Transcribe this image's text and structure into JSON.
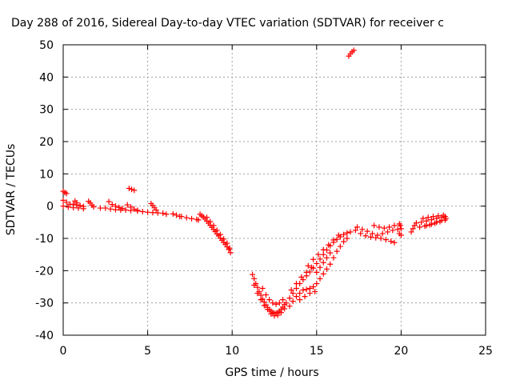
{
  "chart_data": {
    "type": "scatter",
    "title": "Day 288 of 2016, Sidereal Day-to-day VTEC variation (SDTVAR) for receiver c",
    "xlabel": "GPS time / hours",
    "ylabel": "SDTVAR / TECUs",
    "xlim": [
      0,
      25
    ],
    "ylim": [
      -40,
      50
    ],
    "xticks": [
      0,
      5,
      10,
      15,
      20,
      25
    ],
    "yticks": [
      -40,
      -30,
      -20,
      -10,
      0,
      10,
      20,
      30,
      40,
      50
    ],
    "grid": true,
    "marker": "plus",
    "color": "#ff0000",
    "series": [
      {
        "name": "SDTVAR",
        "points": [
          [
            0.0,
            4.6
          ],
          [
            0.1,
            4.2
          ],
          [
            0.2,
            3.9
          ],
          [
            0.0,
            1.8
          ],
          [
            0.2,
            1.2
          ],
          [
            0.4,
            0.6
          ],
          [
            0.6,
            0.5
          ],
          [
            0.8,
            0.4
          ],
          [
            1.0,
            0.2
          ],
          [
            1.2,
            -0.1
          ],
          [
            0.0,
            0.0
          ],
          [
            0.3,
            -0.3
          ],
          [
            0.6,
            -0.5
          ],
          [
            0.9,
            -0.6
          ],
          [
            1.2,
            -0.8
          ],
          [
            0.7,
            1.6
          ],
          [
            0.8,
            1.0
          ],
          [
            1.5,
            1.5
          ],
          [
            1.6,
            1.0
          ],
          [
            1.7,
            0.3
          ],
          [
            1.8,
            -0.2
          ],
          [
            2.2,
            -0.6
          ],
          [
            2.5,
            -0.6
          ],
          [
            2.8,
            -0.9
          ],
          [
            3.1,
            -1.1
          ],
          [
            3.4,
            -1.2
          ],
          [
            3.7,
            -1.2
          ],
          [
            4.0,
            -1.4
          ],
          [
            2.7,
            1.4
          ],
          [
            2.9,
            0.5
          ],
          [
            3.1,
            0.0
          ],
          [
            3.3,
            -0.4
          ],
          [
            3.5,
            -0.7
          ],
          [
            3.8,
            0.4
          ],
          [
            4.0,
            -0.3
          ],
          [
            4.2,
            -0.9
          ],
          [
            4.4,
            -1.3
          ],
          [
            3.9,
            5.5
          ],
          [
            4.05,
            5.2
          ],
          [
            4.2,
            4.9
          ],
          [
            4.4,
            -1.5
          ],
          [
            4.7,
            -1.7
          ],
          [
            5.0,
            -1.9
          ],
          [
            5.3,
            -2.0
          ],
          [
            5.6,
            -2.1
          ],
          [
            5.9,
            -2.2
          ],
          [
            5.2,
            0.8
          ],
          [
            5.3,
            0.2
          ],
          [
            5.4,
            -0.5
          ],
          [
            5.5,
            -1.2
          ],
          [
            6.1,
            -2.5
          ],
          [
            6.5,
            -2.4
          ],
          [
            6.7,
            -2.8
          ],
          [
            6.9,
            -3.2
          ],
          [
            7.0,
            -3.2
          ],
          [
            7.3,
            -3.6
          ],
          [
            7.6,
            -3.9
          ],
          [
            7.9,
            -4.1
          ],
          [
            8.0,
            -4.3
          ],
          [
            8.1,
            -2.5
          ],
          [
            8.2,
            -3.0
          ],
          [
            8.3,
            -3.4
          ],
          [
            8.4,
            -4.0
          ],
          [
            8.5,
            -4.6
          ],
          [
            8.6,
            -5.3
          ],
          [
            8.7,
            -5.9
          ],
          [
            8.8,
            -6.6
          ],
          [
            8.9,
            -7.2
          ],
          [
            9.0,
            -7.9
          ],
          [
            9.1,
            -8.6
          ],
          [
            9.2,
            -9.2
          ],
          [
            9.3,
            -9.9
          ],
          [
            9.4,
            -10.6
          ],
          [
            9.5,
            -11.2
          ],
          [
            9.6,
            -11.9
          ],
          [
            9.7,
            -12.6
          ],
          [
            9.8,
            -13.4
          ],
          [
            9.9,
            -14.4
          ],
          [
            8.5,
            -3.5
          ],
          [
            8.7,
            -4.8
          ],
          [
            8.9,
            -6.0
          ],
          [
            9.1,
            -7.5
          ],
          [
            9.3,
            -8.8
          ],
          [
            9.5,
            -10.2
          ],
          [
            9.7,
            -11.5
          ],
          [
            9.85,
            -13.0
          ],
          [
            11.2,
            -21.2
          ],
          [
            11.3,
            -22.5
          ],
          [
            11.4,
            -24.0
          ],
          [
            11.5,
            -25.2
          ],
          [
            11.6,
            -26.5
          ],
          [
            11.7,
            -27.6
          ],
          [
            11.8,
            -28.8
          ],
          [
            11.9,
            -29.7
          ],
          [
            12.0,
            -30.6
          ],
          [
            12.1,
            -31.4
          ],
          [
            12.2,
            -32.1
          ],
          [
            12.3,
            -32.6
          ],
          [
            12.4,
            -33.0
          ],
          [
            12.5,
            -33.2
          ],
          [
            12.6,
            -33.2
          ],
          [
            12.7,
            -33.0
          ],
          [
            12.8,
            -32.6
          ],
          [
            12.9,
            -32.0
          ],
          [
            13.0,
            -31.3
          ],
          [
            13.1,
            -30.5
          ],
          [
            11.3,
            -24.5
          ],
          [
            11.5,
            -27.0
          ],
          [
            11.7,
            -29.0
          ],
          [
            11.9,
            -30.8
          ],
          [
            12.1,
            -32.0
          ],
          [
            12.3,
            -33.4
          ],
          [
            12.5,
            -34.0
          ],
          [
            12.7,
            -33.8
          ],
          [
            12.9,
            -33.0
          ],
          [
            13.1,
            -31.8
          ],
          [
            11.8,
            -25.5
          ],
          [
            12.0,
            -27.5
          ],
          [
            12.2,
            -29.0
          ],
          [
            12.4,
            -30.0
          ],
          [
            12.6,
            -30.4
          ],
          [
            12.8,
            -30.0
          ],
          [
            13.0,
            -29.0
          ],
          [
            13.2,
            -30.0
          ],
          [
            13.4,
            -28.5
          ],
          [
            13.6,
            -27.0
          ],
          [
            13.8,
            -25.5
          ],
          [
            14.0,
            -24.0
          ],
          [
            14.2,
            -22.8
          ],
          [
            14.4,
            -21.6
          ],
          [
            14.6,
            -20.4
          ],
          [
            14.8,
            -19.2
          ],
          [
            15.0,
            -17.8
          ],
          [
            15.2,
            -16.4
          ],
          [
            15.4,
            -15.0
          ],
          [
            15.6,
            -13.6
          ],
          [
            15.8,
            -12.3
          ],
          [
            16.0,
            -11.2
          ],
          [
            16.2,
            -10.3
          ],
          [
            16.4,
            -9.5
          ],
          [
            16.6,
            -8.8
          ],
          [
            16.8,
            -8.3
          ],
          [
            17.0,
            -8.0
          ],
          [
            13.4,
            -31.0
          ],
          [
            13.6,
            -29.5
          ],
          [
            13.8,
            -28.0
          ],
          [
            14.0,
            -27.0
          ],
          [
            14.2,
            -26.0
          ],
          [
            14.4,
            -25.8
          ],
          [
            14.6,
            -25.5
          ],
          [
            14.8,
            -25.0
          ],
          [
            15.0,
            -24.0
          ],
          [
            15.2,
            -22.5
          ],
          [
            15.4,
            -21.0
          ],
          [
            15.6,
            -19.5
          ],
          [
            15.8,
            -18.0
          ],
          [
            16.0,
            -16.0
          ],
          [
            16.2,
            -14.0
          ],
          [
            16.4,
            -12.5
          ],
          [
            16.6,
            -11.0
          ],
          [
            16.8,
            -10.0
          ],
          [
            13.5,
            -26.0
          ],
          [
            13.8,
            -24.0
          ],
          [
            14.1,
            -22.0
          ],
          [
            14.4,
            -20.5
          ],
          [
            14.7,
            -19.0
          ],
          [
            15.0,
            -20.5
          ],
          [
            15.2,
            -19.0
          ],
          [
            15.4,
            -17.5
          ],
          [
            15.6,
            -16.0
          ],
          [
            15.8,
            -14.5
          ],
          [
            14.0,
            -29.0
          ],
          [
            14.3,
            -28.0
          ],
          [
            14.6,
            -27.0
          ],
          [
            14.9,
            -26.5
          ],
          [
            14.5,
            -18.5
          ],
          [
            14.8,
            -16.5
          ],
          [
            15.1,
            -15.0
          ],
          [
            15.4,
            -13.5
          ],
          [
            15.7,
            -12.0
          ],
          [
            16.0,
            -10.5
          ],
          [
            16.3,
            -9.0
          ],
          [
            16.9,
            46.5
          ],
          [
            17.0,
            47.2
          ],
          [
            17.1,
            47.8
          ],
          [
            17.2,
            48.3
          ],
          [
            17.3,
            -7.5
          ],
          [
            17.6,
            -8.5
          ],
          [
            17.9,
            -9.2
          ],
          [
            18.2,
            -9.6
          ],
          [
            18.5,
            -9.8
          ],
          [
            18.8,
            -10.0
          ],
          [
            19.1,
            -10.4
          ],
          [
            19.4,
            -10.9
          ],
          [
            19.6,
            -11.3
          ],
          [
            17.4,
            -6.5
          ],
          [
            17.7,
            -7.2
          ],
          [
            18.0,
            -7.8
          ],
          [
            18.3,
            -8.5
          ],
          [
            18.6,
            -9.0
          ],
          [
            18.9,
            -8.5
          ],
          [
            19.2,
            -8.0
          ],
          [
            19.5,
            -7.5
          ],
          [
            19.8,
            -7.2
          ],
          [
            20.0,
            -7.0
          ],
          [
            18.4,
            -6.0
          ],
          [
            18.7,
            -6.5
          ],
          [
            19.0,
            -6.8
          ],
          [
            19.3,
            -6.5
          ],
          [
            19.6,
            -6.0
          ],
          [
            19.9,
            -5.5
          ],
          [
            19.9,
            -8.5
          ],
          [
            20.0,
            -9.0
          ],
          [
            19.95,
            -6.0
          ],
          [
            20.6,
            -8.0
          ],
          [
            20.7,
            -7.0
          ],
          [
            20.8,
            -6.0
          ],
          [
            20.9,
            -5.2
          ],
          [
            21.1,
            -6.5
          ],
          [
            21.4,
            -6.2
          ],
          [
            21.7,
            -5.8
          ],
          [
            22.0,
            -5.3
          ],
          [
            22.3,
            -4.8
          ],
          [
            22.6,
            -4.3
          ],
          [
            21.2,
            -5.0
          ],
          [
            21.5,
            -4.6
          ],
          [
            21.8,
            -4.2
          ],
          [
            22.1,
            -3.8
          ],
          [
            22.4,
            -3.5
          ],
          [
            22.6,
            -3.2
          ],
          [
            21.3,
            -3.8
          ],
          [
            21.6,
            -3.5
          ],
          [
            21.9,
            -3.2
          ],
          [
            22.2,
            -3.0
          ],
          [
            22.5,
            -2.8
          ],
          [
            21.5,
            -6.0
          ],
          [
            21.8,
            -5.6
          ],
          [
            22.1,
            -5.0
          ],
          [
            22.4,
            -4.4
          ],
          [
            22.65,
            -3.8
          ]
        ]
      }
    ]
  }
}
